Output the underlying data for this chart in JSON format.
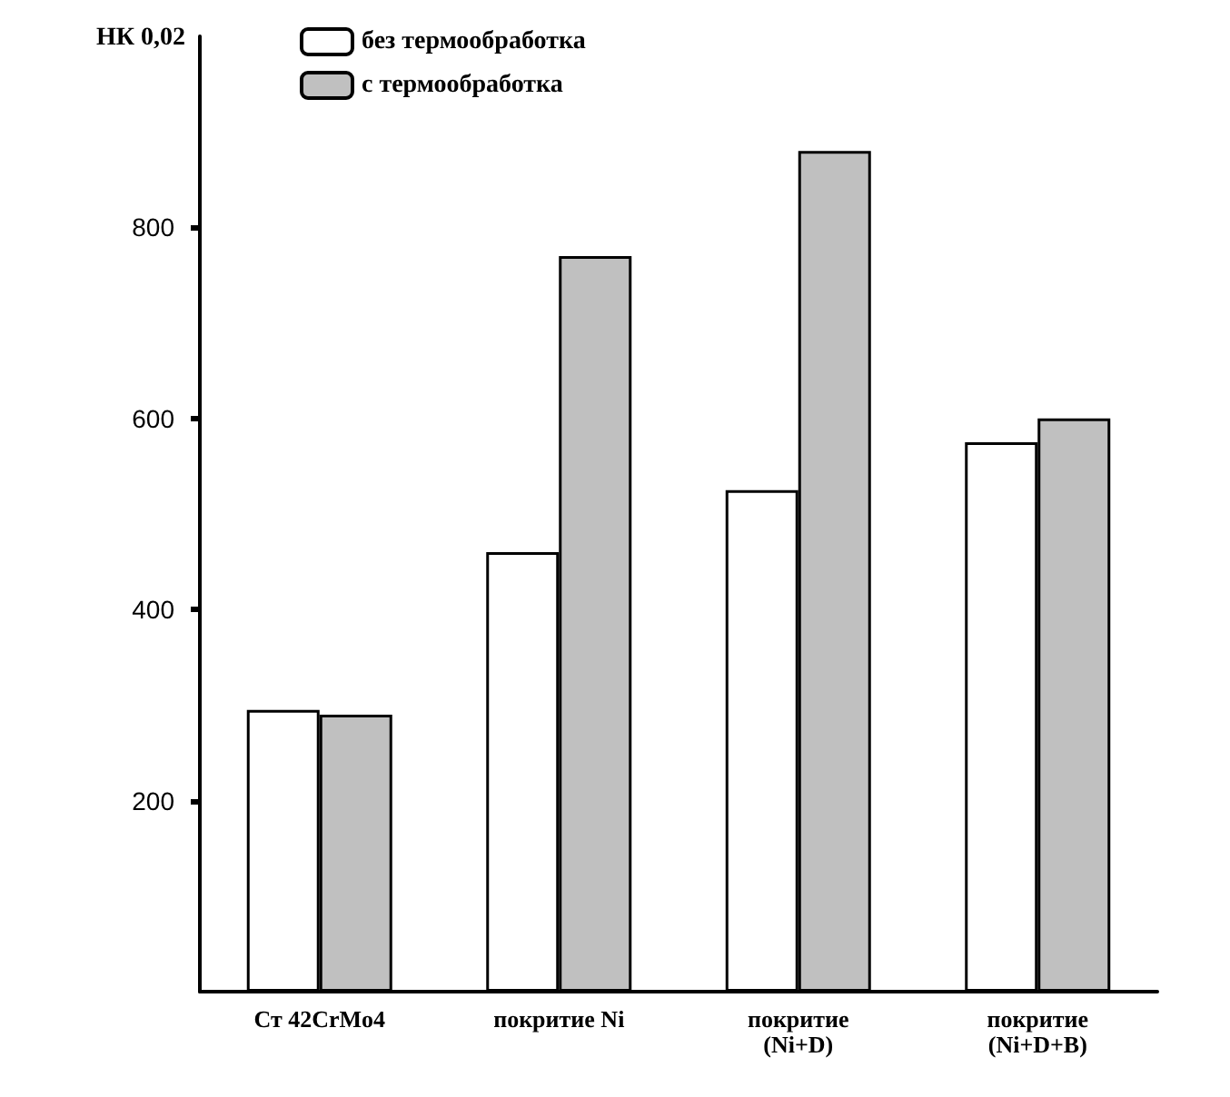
{
  "chart_data": {
    "type": "bar",
    "ylabel": "НК 0,02",
    "categories": [
      "Ст 42CrMo4",
      "покритие Ni",
      "покритие\n(Ni+D)",
      "покритие\n(Ni+D+B)"
    ],
    "series": [
      {
        "name": "без термообработка",
        "color": "#ffffff",
        "values": [
          295,
          460,
          525,
          575
        ]
      },
      {
        "name": "с термообработка",
        "color": "#c0c0c0",
        "values": [
          290,
          770,
          880,
          600
        ]
      }
    ],
    "ylim": [
      0,
      1000
    ],
    "yticks": [
      200,
      400,
      600,
      800
    ],
    "grid": false,
    "legend": "top left"
  }
}
